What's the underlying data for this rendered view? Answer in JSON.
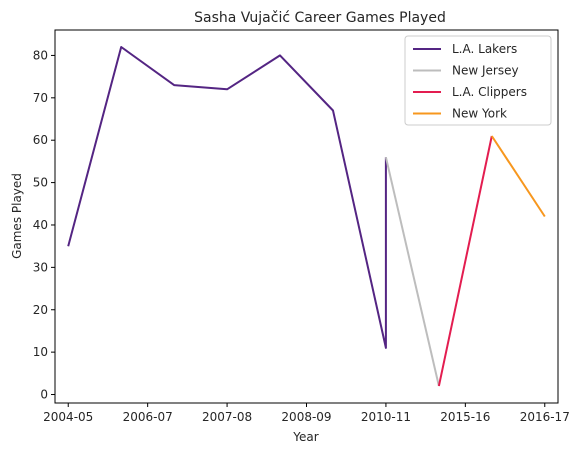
{
  "chart_data": {
    "type": "line",
    "title": "Sasha Vujačić Career Games Played",
    "xlabel": "Year",
    "ylabel": "Games Played",
    "ylim": [
      -2,
      86
    ],
    "yticks": [
      0,
      10,
      20,
      30,
      40,
      50,
      60,
      70,
      80
    ],
    "xlim": [
      -0.25,
      9.25
    ],
    "xticks": [
      0,
      1,
      2,
      3,
      4,
      5,
      6,
      7
    ],
    "xtick_labels": [
      "2004-05",
      "2006-07",
      "2007-08",
      "2008-09",
      "2010-11",
      "2015-16",
      "2016-17"
    ],
    "xtick_positions": [
      0,
      1.5,
      3,
      4.5,
      6,
      7.5,
      9
    ],
    "grid": false,
    "legend": "top-right",
    "series": [
      {
        "name": "L.A. Lakers",
        "color": "#542583",
        "x": [
          0,
          1,
          2,
          3,
          4,
          5,
          6,
          6
        ],
        "y": [
          35,
          82,
          73,
          72,
          80,
          67,
          11,
          56
        ]
      },
      {
        "name": "New Jersey",
        "color": "#bdbdbd",
        "x": [
          6,
          7
        ],
        "y": [
          56,
          2
        ]
      },
      {
        "name": "L.A. Clippers",
        "color": "#e31d50",
        "x": [
          7,
          8
        ],
        "y": [
          2,
          61
        ]
      },
      {
        "name": "New York",
        "color": "#f7971e",
        "x": [
          8,
          9
        ],
        "y": [
          61,
          42
        ]
      }
    ]
  }
}
